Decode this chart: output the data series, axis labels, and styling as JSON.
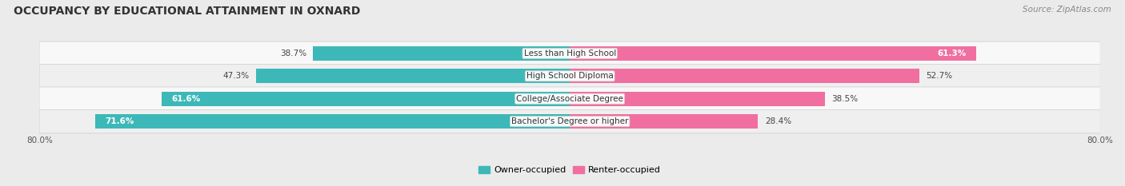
{
  "title": "OCCUPANCY BY EDUCATIONAL ATTAINMENT IN OXNARD",
  "source": "Source: ZipAtlas.com",
  "categories": [
    "Less than High School",
    "High School Diploma",
    "College/Associate Degree",
    "Bachelor's Degree or higher"
  ],
  "owner_values": [
    38.7,
    47.3,
    61.6,
    71.6
  ],
  "renter_values": [
    61.3,
    52.7,
    38.5,
    28.4
  ],
  "owner_color": "#3db8b8",
  "renter_color": "#f06fa0",
  "background_color": "#ebebeb",
  "row_color_odd": "#f8f8f8",
  "row_color_even": "#efefef",
  "xlim_left": -80.0,
  "xlim_right": 80.0,
  "legend_owner": "Owner-occupied",
  "legend_renter": "Renter-occupied",
  "title_fontsize": 10,
  "source_fontsize": 7.5,
  "value_fontsize": 7.5,
  "cat_fontsize": 7.5,
  "bar_height": 0.62,
  "n_rows": 4
}
